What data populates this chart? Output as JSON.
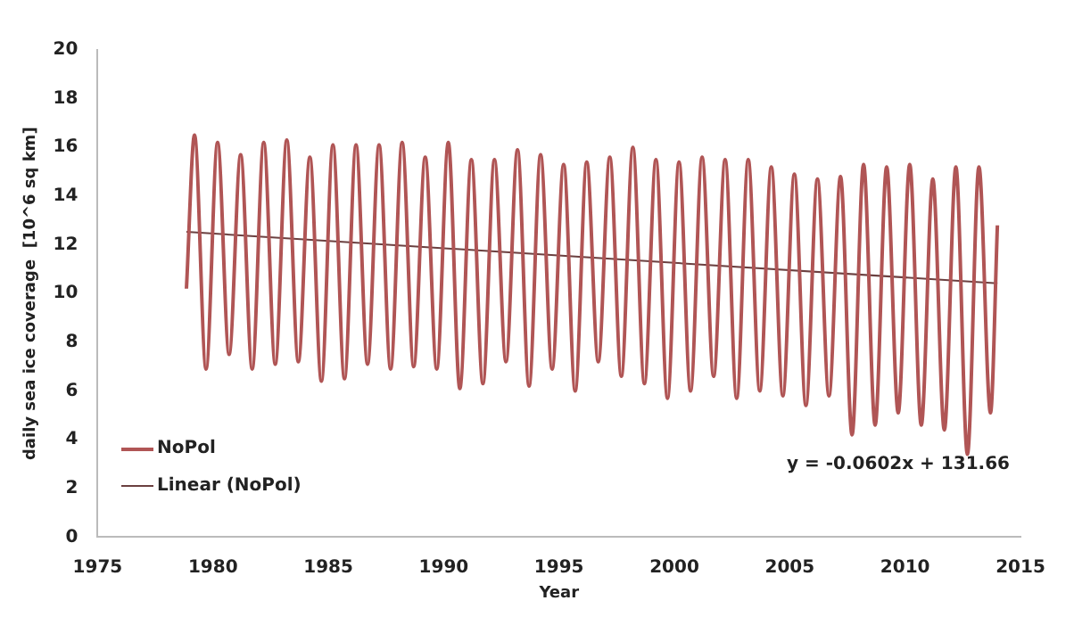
{
  "chart_data": {
    "type": "line",
    "xlabel": "Year",
    "ylabel": "daily sea ice coverage  [10^6 sq km]",
    "xlim": [
      1975,
      2015
    ],
    "xticks": [
      1975,
      1980,
      1985,
      1990,
      1995,
      2000,
      2005,
      2010,
      2015
    ],
    "ylim": [
      0,
      20
    ],
    "yticks": [
      0,
      2,
      4,
      6,
      8,
      10,
      12,
      14,
      16,
      18,
      20
    ],
    "grid": false,
    "legend": "bottom left",
    "marker": "none",
    "line_style": "solid",
    "annotations": [
      "y = -0.0602x + 131.66"
    ],
    "series": [
      {
        "name": "NoPol",
        "color": "#b05555",
        "x": [
          1978.85,
          1979.2,
          1979.7,
          1980.2,
          1980.7,
          1981.2,
          1981.7,
          1982.2,
          1982.7,
          1983.2,
          1983.7,
          1984.2,
          1984.7,
          1985.2,
          1985.7,
          1986.2,
          1986.7,
          1987.2,
          1987.7,
          1988.2,
          1988.7,
          1989.2,
          1989.7,
          1990.2,
          1990.7,
          1991.2,
          1991.7,
          1992.2,
          1992.7,
          1993.2,
          1993.7,
          1994.2,
          1994.7,
          1995.2,
          1995.7,
          1996.2,
          1996.7,
          1997.2,
          1997.7,
          1998.2,
          1998.7,
          1999.2,
          1999.7,
          2000.2,
          2000.7,
          2001.2,
          2001.7,
          2002.2,
          2002.7,
          2003.2,
          2003.7,
          2004.2,
          2004.7,
          2005.2,
          2005.7,
          2006.2,
          2006.7,
          2007.2,
          2007.7,
          2008.2,
          2008.7,
          2009.2,
          2009.7,
          2010.2,
          2010.7,
          2011.2,
          2011.7,
          2012.2,
          2012.7,
          2013.2,
          2013.7,
          2014.0
        ],
        "values": [
          10.2,
          16.5,
          6.9,
          16.2,
          7.5,
          15.7,
          6.9,
          16.2,
          7.1,
          16.3,
          7.2,
          15.6,
          6.4,
          16.1,
          6.5,
          16.1,
          7.1,
          16.1,
          6.9,
          16.2,
          7.0,
          15.6,
          6.9,
          16.2,
          6.1,
          15.5,
          6.3,
          15.5,
          7.2,
          15.9,
          6.2,
          15.7,
          6.9,
          15.3,
          6.0,
          15.4,
          7.2,
          15.6,
          6.6,
          16.0,
          6.3,
          15.5,
          5.7,
          15.4,
          6.0,
          15.6,
          6.6,
          15.5,
          5.7,
          15.5,
          6.0,
          15.2,
          5.8,
          14.9,
          5.4,
          14.7,
          5.8,
          14.8,
          4.2,
          15.3,
          4.6,
          15.2,
          5.1,
          15.3,
          4.6,
          14.7,
          4.4,
          15.2,
          3.4,
          15.2,
          5.1,
          12.8
        ]
      },
      {
        "name": "Linear (NoPol)",
        "color": "#6b4040",
        "x": [
          1978.85,
          2014.0
        ],
        "values": [
          12.53,
          10.42
        ]
      }
    ]
  }
}
